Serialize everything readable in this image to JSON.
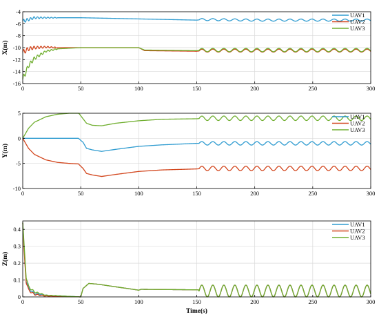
{
  "colors": {
    "UAV1": "#2e9bd0",
    "UAV2": "#d2451c",
    "UAV3": "#6fae2e",
    "grid": "#d9d9d9",
    "axis": "#000000"
  },
  "chart_data": [
    {
      "type": "line",
      "xlabel": "",
      "ylabel": "X(m)",
      "xlim": [
        0,
        300
      ],
      "ylim": [
        -16,
        -4
      ],
      "xticks": [
        "0",
        "50",
        "100",
        "150",
        "200",
        "250",
        "300"
      ],
      "yticks": [
        "-16",
        "-14",
        "-12",
        "-10",
        "-8",
        "-6",
        "-4"
      ],
      "grid": true,
      "legend_position": "top-right",
      "series": [
        {
          "name": "UAV1",
          "x": [
            0,
            5,
            10,
            20,
            30,
            50,
            100,
            150,
            155,
            200,
            250,
            300
          ],
          "values": [
            -5.6,
            -5.3,
            -5.0,
            -5.0,
            -5.0,
            -5.0,
            -5.2,
            -5.4,
            -5.3,
            -5.4,
            -5.4,
            -5.4
          ]
        },
        {
          "name": "UAV2",
          "x": [
            0,
            5,
            10,
            20,
            30,
            50,
            100,
            105,
            150,
            155,
            200,
            250,
            300
          ],
          "values": [
            -10.8,
            -10.2,
            -10.0,
            -9.9,
            -10.0,
            -10.0,
            -10.0,
            -10.5,
            -10.6,
            -10.5,
            -10.5,
            -10.5,
            -10.5
          ]
        },
        {
          "name": "UAV3",
          "x": [
            0,
            5,
            10,
            20,
            30,
            50,
            100,
            105,
            150,
            155,
            200,
            250,
            300
          ],
          "values": [
            -15.3,
            -13.0,
            -11.8,
            -10.6,
            -10.2,
            -10.0,
            -10.0,
            -10.4,
            -10.5,
            -10.4,
            -10.4,
            -10.4,
            -10.4
          ]
        }
      ]
    },
    {
      "type": "line",
      "xlabel": "",
      "ylabel": "Y(m)",
      "xlim": [
        0,
        300
      ],
      "ylim": [
        -10,
        5
      ],
      "xticks": [
        "0",
        "50",
        "100",
        "150",
        "200",
        "250",
        "300"
      ],
      "yticks": [
        "-10",
        "-5",
        "0",
        "5"
      ],
      "grid": true,
      "legend_position": "top-right",
      "series": [
        {
          "name": "UAV1",
          "x": [
            0,
            48,
            52,
            55,
            60,
            68,
            80,
            100,
            120,
            150,
            155,
            200,
            250,
            300
          ],
          "values": [
            0,
            0,
            -0.8,
            -2.0,
            -2.3,
            -2.6,
            -2.2,
            -1.6,
            -1.3,
            -1.0,
            -1.0,
            -1.0,
            -1.0,
            -1.0
          ]
        },
        {
          "name": "UAV2",
          "x": [
            0,
            5,
            10,
            20,
            30,
            40,
            48,
            52,
            55,
            60,
            68,
            80,
            100,
            120,
            150,
            155,
            200,
            250,
            300
          ],
          "values": [
            0,
            -2.0,
            -3.2,
            -4.3,
            -4.8,
            -5.0,
            -5.1,
            -6.0,
            -7.0,
            -7.3,
            -7.6,
            -7.2,
            -6.6,
            -6.3,
            -6.1,
            -6.0,
            -6.0,
            -6.0,
            -6.0
          ]
        },
        {
          "name": "UAV3",
          "x": [
            0,
            5,
            10,
            20,
            30,
            40,
            48,
            52,
            55,
            60,
            68,
            80,
            100,
            120,
            150,
            155,
            200,
            250,
            300
          ],
          "values": [
            0,
            2.0,
            3.2,
            4.3,
            4.8,
            5.0,
            5.1,
            3.9,
            3.0,
            2.6,
            2.5,
            3.0,
            3.5,
            3.8,
            3.9,
            4.0,
            4.0,
            4.0,
            4.0
          ]
        }
      ]
    },
    {
      "type": "line",
      "xlabel": "Time(s)",
      "ylabel": "Z(m)",
      "xlim": [
        0,
        300
      ],
      "ylim": [
        0,
        0.45
      ],
      "xticks": [
        "0",
        "50",
        "100",
        "150",
        "200",
        "250",
        "300"
      ],
      "yticks": [
        "0",
        "0.1",
        "0.2",
        "0.3",
        "0.4"
      ],
      "grid": true,
      "legend_position": "top-right",
      "series": [
        {
          "name": "UAV1",
          "x": [
            0,
            1,
            3,
            5,
            10,
            20,
            50,
            52,
            57,
            65,
            80,
            100,
            102,
            150,
            155,
            200,
            250,
            300
          ],
          "values": [
            0.44,
            0.3,
            0.1,
            0.05,
            0.02,
            0.01,
            0.0,
            0.05,
            0.08,
            0.075,
            0.06,
            0.04,
            0.045,
            0.042,
            0.04,
            0.04,
            0.04,
            0.04
          ]
        },
        {
          "name": "UAV2",
          "x": [
            0,
            1,
            3,
            5,
            10,
            20,
            50,
            52,
            57,
            65,
            80,
            100,
            102,
            150,
            155,
            200,
            250,
            300
          ],
          "values": [
            0.44,
            0.28,
            0.09,
            0.04,
            0.015,
            0.005,
            0.0,
            0.05,
            0.08,
            0.075,
            0.06,
            0.04,
            0.045,
            0.042,
            0.04,
            0.04,
            0.04,
            0.04
          ]
        },
        {
          "name": "UAV3",
          "x": [
            0,
            1,
            3,
            5,
            10,
            20,
            50,
            52,
            57,
            65,
            80,
            100,
            102,
            150,
            155,
            200,
            250,
            300
          ],
          "values": [
            0.44,
            0.32,
            0.12,
            0.06,
            0.03,
            0.01,
            0.0,
            0.05,
            0.08,
            0.075,
            0.06,
            0.04,
            0.045,
            0.042,
            0.04,
            0.04,
            0.04,
            0.04
          ]
        }
      ]
    }
  ]
}
